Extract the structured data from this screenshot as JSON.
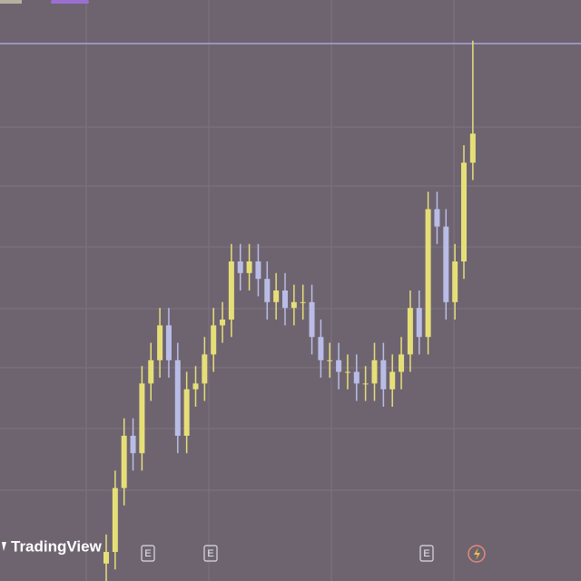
{
  "chart_data": {
    "type": "candlestick",
    "logo": "TradingView",
    "events": [
      "E",
      "E",
      "E"
    ],
    "ylim": [
      0,
      100
    ],
    "up_color": "#e6df78",
    "down_color": "#b9bde6",
    "grid": true,
    "open": [
      3,
      5,
      16,
      25,
      22,
      34,
      38,
      44,
      38,
      25,
      33,
      34,
      39,
      44,
      45,
      55,
      53,
      55,
      52,
      48,
      50,
      47,
      48,
      48,
      42,
      38,
      38,
      36,
      36,
      34,
      34,
      38,
      33,
      36,
      39,
      47,
      42,
      64,
      61,
      48,
      55,
      72
    ],
    "high": [
      8,
      19,
      28,
      28,
      37,
      41,
      47,
      47,
      41,
      36,
      37,
      42,
      47,
      48,
      58,
      58,
      58,
      58,
      55,
      53,
      53,
      51,
      51,
      51,
      45,
      41,
      41,
      39,
      39,
      37,
      41,
      41,
      39,
      42,
      50,
      50,
      67,
      67,
      64,
      58,
      75,
      93
    ],
    "low": [
      0,
      2,
      13,
      19,
      19,
      31,
      35,
      35,
      22,
      22,
      30,
      31,
      36,
      41,
      42,
      50,
      50,
      49,
      45,
      45,
      44,
      44,
      45,
      39,
      35,
      35,
      33,
      33,
      31,
      31,
      31,
      30,
      30,
      33,
      36,
      39,
      39,
      58,
      45,
      45,
      52,
      69
    ],
    "close": [
      5,
      16,
      25,
      22,
      34,
      38,
      44,
      38,
      25,
      33,
      34,
      39,
      44,
      45,
      55,
      53,
      55,
      52,
      48,
      50,
      47,
      48,
      48,
      42,
      38,
      38,
      36,
      36,
      34,
      34,
      38,
      33,
      36,
      39,
      47,
      42,
      64,
      61,
      48,
      55,
      72,
      77
    ]
  }
}
